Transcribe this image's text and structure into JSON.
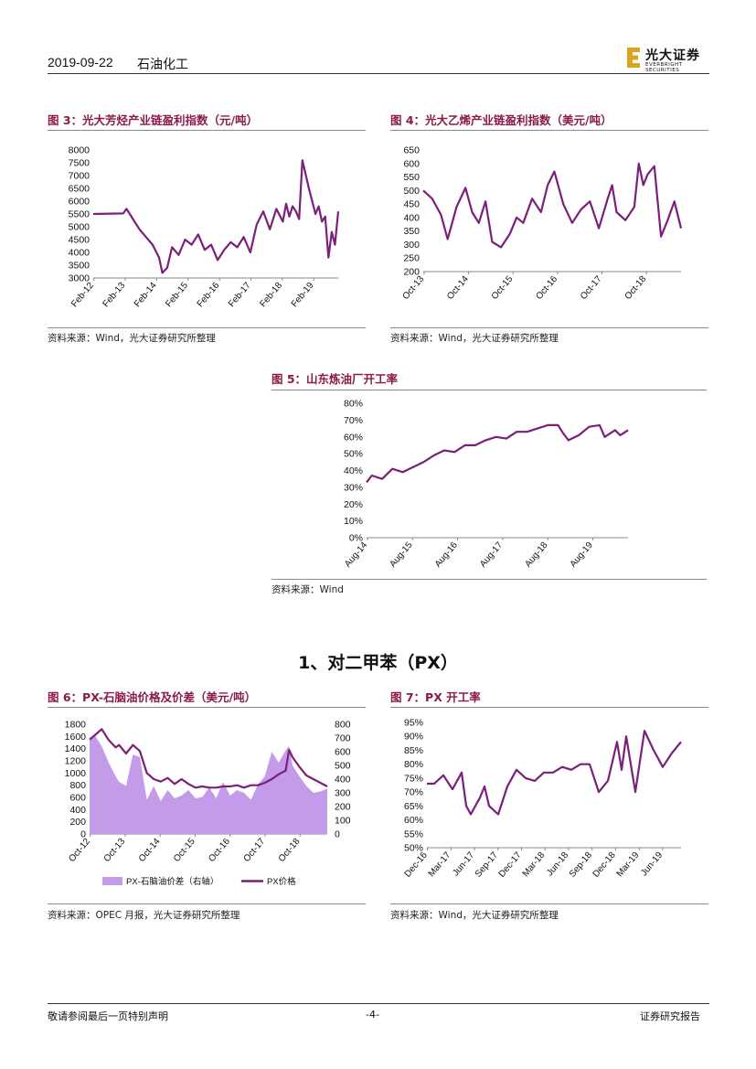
{
  "header": {
    "date": "2019-09-22",
    "sector": "石油化工",
    "logo_cn": "光大证券",
    "logo_en": "EVERBRIGHT SECURITIES"
  },
  "section_heading": "1、对二甲苯（PX）",
  "footer": {
    "left": "敬请参阅最后一页特别声明",
    "center": "-4-",
    "right": "证券研究报告"
  },
  "colors": {
    "series": "#7a1f7a",
    "bar": "#c39be8",
    "title": "#8b1a4a"
  },
  "figures": {
    "fig3": {
      "title": "图 3：光大芳烃产业链盈利指数（元/吨）",
      "source": "资料来源：Wind，光大证券研究所整理"
    },
    "fig4": {
      "title": "图 4：光大乙烯产业链盈利指数（美元/吨）",
      "source": "资料来源：Wind，光大证券研究所整理"
    },
    "fig5": {
      "title": "图 5：山东炼油厂开工率",
      "source": "资料来源：Wind"
    },
    "fig6": {
      "title": "图 6：PX-石脑油价格及价差（美元/吨）",
      "source": "资料来源：OPEC 月报，光大证券研究所整理"
    },
    "fig7": {
      "title": "图 7：PX 开工率",
      "source": "资料来源：Wind，光大证券研究所整理"
    }
  },
  "chart_data": [
    {
      "id": "fig3",
      "type": "line",
      "ylim": [
        3000,
        8000
      ],
      "yticks": [
        "3000",
        "3500",
        "4000",
        "4500",
        "5000",
        "5500",
        "6000",
        "6500",
        "7000",
        "7500",
        "8000"
      ],
      "xticks": [
        "Feb-12",
        "Feb-13",
        "Feb-14",
        "Feb-15",
        "Feb-16",
        "Feb-17",
        "Feb-18",
        "Feb-19"
      ],
      "x": [
        2012.08,
        2013.0,
        2013.1,
        2013.3,
        2013.5,
        2013.7,
        2013.9,
        2014.1,
        2014.2,
        2014.35,
        2014.5,
        2014.7,
        2014.9,
        2015.1,
        2015.3,
        2015.5,
        2015.7,
        2015.9,
        2016.1,
        2016.3,
        2016.5,
        2016.7,
        2016.9,
        2017.1,
        2017.3,
        2017.5,
        2017.7,
        2017.9,
        2018.0,
        2018.1,
        2018.2,
        2018.3,
        2018.4,
        2018.5,
        2018.7,
        2018.9,
        2019.0,
        2019.1,
        2019.2,
        2019.3,
        2019.4,
        2019.5,
        2019.6
      ],
      "y": [
        5500,
        5520,
        5700,
        5300,
        4900,
        4600,
        4300,
        3800,
        3200,
        3400,
        4200,
        3900,
        4500,
        4300,
        4700,
        4100,
        4300,
        3700,
        4100,
        4400,
        4200,
        4600,
        4000,
        5100,
        5600,
        4900,
        5700,
        5200,
        5900,
        5400,
        5800,
        5600,
        5300,
        7600,
        6500,
        5500,
        5800,
        5200,
        5400,
        3800,
        4800,
        4300,
        5600
      ]
    },
    {
      "id": "fig4",
      "type": "line",
      "ylim": [
        200,
        650
      ],
      "yticks": [
        "200",
        "250",
        "300",
        "350",
        "400",
        "450",
        "500",
        "550",
        "600",
        "650"
      ],
      "xticks": [
        "Oct-13",
        "Oct-14",
        "Oct-15",
        "Oct-16",
        "Oct-17",
        "Oct-18"
      ],
      "x": [
        2013.75,
        2013.95,
        2014.15,
        2014.3,
        2014.5,
        2014.7,
        2014.85,
        2015.0,
        2015.15,
        2015.3,
        2015.5,
        2015.7,
        2015.85,
        2016.0,
        2016.2,
        2016.4,
        2016.55,
        2016.7,
        2016.9,
        2017.1,
        2017.3,
        2017.5,
        2017.7,
        2017.9,
        2018.0,
        2018.1,
        2018.3,
        2018.5,
        2018.6,
        2018.7,
        2018.8,
        2018.95,
        2019.1,
        2019.25,
        2019.4,
        2019.55
      ],
      "y": [
        500,
        470,
        410,
        320,
        440,
        510,
        420,
        380,
        460,
        310,
        290,
        340,
        400,
        380,
        470,
        420,
        520,
        570,
        450,
        380,
        430,
        460,
        360,
        470,
        520,
        420,
        390,
        440,
        600,
        520,
        560,
        590,
        330,
        390,
        460,
        360
      ]
    },
    {
      "id": "fig5",
      "type": "line",
      "ylim": [
        0,
        80
      ],
      "yticks": [
        "0%",
        "10%",
        "20%",
        "30%",
        "40%",
        "50%",
        "60%",
        "70%",
        "80%"
      ],
      "xticks": [
        "Aug-14",
        "Aug-15",
        "Aug-16",
        "Aug-17",
        "Aug-18",
        "Aug-19"
      ],
      "x": [
        2014.6,
        2014.7,
        2014.9,
        2015.1,
        2015.3,
        2015.5,
        2015.7,
        2015.9,
        2016.1,
        2016.3,
        2016.5,
        2016.7,
        2016.9,
        2017.1,
        2017.3,
        2017.5,
        2017.7,
        2017.9,
        2018.1,
        2018.3,
        2018.4,
        2018.5,
        2018.7,
        2018.9,
        2019.1,
        2019.2,
        2019.4,
        2019.5,
        2019.65
      ],
      "y": [
        33,
        37,
        35,
        41,
        39,
        42,
        45,
        49,
        52,
        51,
        55,
        55,
        58,
        60,
        59,
        63,
        63,
        65,
        67,
        67,
        62,
        58,
        61,
        66,
        67,
        60,
        64,
        61,
        64
      ]
    },
    {
      "id": "fig6",
      "type": "bar+line",
      "ylim_left": [
        0,
        1800
      ],
      "ylim_right": [
        0,
        800
      ],
      "yticks_left": [
        "0",
        "200",
        "400",
        "600",
        "800",
        "1000",
        "1200",
        "1400",
        "1600",
        "1800"
      ],
      "yticks_right": [
        "0",
        "100",
        "200",
        "300",
        "400",
        "500",
        "600",
        "700",
        "800"
      ],
      "xticks": [
        "Oct-12",
        "Oct-13",
        "Oct-14",
        "Oct-15",
        "Oct-16",
        "Oct-17",
        "Oct-18"
      ],
      "legend": [
        "PX-石脑油价差（右轴）",
        "PX价格"
      ],
      "x": [
        2012.75,
        2012.9,
        2013.1,
        2013.3,
        2013.5,
        2013.6,
        2013.8,
        2014.0,
        2014.2,
        2014.4,
        2014.6,
        2014.8,
        2015.0,
        2015.2,
        2015.4,
        2015.6,
        2015.8,
        2016.0,
        2016.2,
        2016.4,
        2016.6,
        2016.8,
        2017.0,
        2017.2,
        2017.4,
        2017.6,
        2017.8,
        2018.0,
        2018.2,
        2018.4,
        2018.5,
        2018.6,
        2018.8,
        2019.0,
        2019.2,
        2019.4,
        2019.6
      ],
      "px_price": [
        1550,
        1620,
        1720,
        1540,
        1420,
        1460,
        1320,
        1460,
        1360,
        1000,
        900,
        860,
        920,
        820,
        900,
        820,
        760,
        780,
        760,
        760,
        780,
        780,
        800,
        760,
        800,
        800,
        840,
        900,
        980,
        1040,
        1380,
        1260,
        1100,
        960,
        900,
        840,
        780
      ],
      "spread": [
        700,
        720,
        640,
        520,
        420,
        380,
        350,
        580,
        560,
        250,
        350,
        240,
        320,
        260,
        280,
        320,
        260,
        270,
        340,
        260,
        380,
        280,
        320,
        300,
        250,
        360,
        420,
        600,
        520,
        610,
        640,
        500,
        420,
        350,
        300,
        310,
        330
      ]
    },
    {
      "id": "fig7",
      "type": "line",
      "ylim": [
        50,
        95
      ],
      "yticks": [
        "50%",
        "55%",
        "60%",
        "65%",
        "70%",
        "75%",
        "80%",
        "85%",
        "90%",
        "95%"
      ],
      "xticks": [
        "Dec-16",
        "Mar-17",
        "Jun-17",
        "Sep-17",
        "Dec-17",
        "Mar-18",
        "Jun-18",
        "Sep-18",
        "Dec-18",
        "Mar-19",
        "Jun-19"
      ],
      "x": [
        2016.92,
        2017.0,
        2017.1,
        2017.2,
        2017.3,
        2017.35,
        2017.4,
        2017.5,
        2017.55,
        2017.6,
        2017.7,
        2017.8,
        2017.9,
        2018.0,
        2018.1,
        2018.2,
        2018.3,
        2018.4,
        2018.5,
        2018.6,
        2018.7,
        2018.8,
        2018.9,
        2019.0,
        2019.05,
        2019.1,
        2019.2,
        2019.3,
        2019.4,
        2019.5,
        2019.6,
        2019.7
      ],
      "y": [
        73,
        73,
        76,
        71,
        77,
        65,
        62,
        68,
        72,
        65,
        62,
        72,
        78,
        75,
        74,
        77,
        77,
        79,
        78,
        80,
        80,
        70,
        74,
        88,
        78,
        90,
        70,
        92,
        85,
        79,
        84,
        88
      ]
    }
  ]
}
